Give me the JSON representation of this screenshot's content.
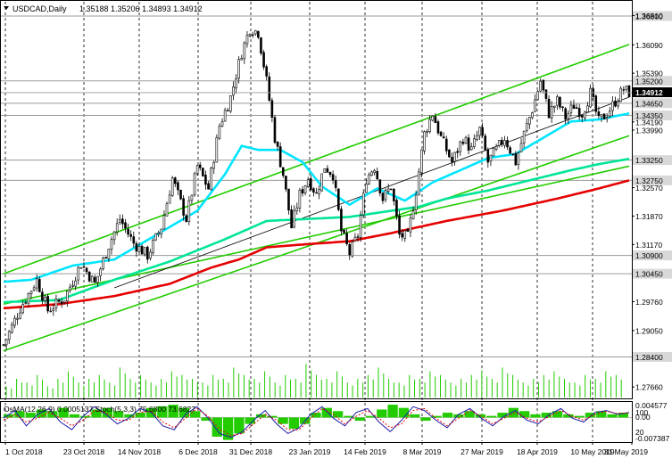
{
  "chart_data": {
    "type": "candlestick",
    "symbol_timeframe": "USDCAD,Daily",
    "ohlc_header": "1.35188 1.35206 1.34893 1.34912",
    "last_price_label": "1.34912",
    "x_ticks": [
      "1 Oct 2018",
      "23 Oct 2018",
      "14 Nov 2018",
      "6 Dec 2018",
      "31 Dec 2018",
      "23 Jan 2019",
      "14 Feb 2019",
      "8 Mar 2019",
      "27 Mar 2019",
      "18 Apr 2019",
      "10 May 2019",
      "31 May 2019"
    ],
    "y_ticks": [
      "1.36810",
      "1.36090",
      "1.35390",
      "1.34190",
      "1.33990",
      "1.32570",
      "1.31870",
      "1.31170",
      "1.29760",
      "1.29050",
      "1.27660"
    ],
    "level_labels": [
      "1.36800",
      "1.35200",
      "1.34650",
      "1.34350",
      "1.33250",
      "1.32750",
      "1.30900",
      "1.30450",
      "1.28400"
    ],
    "ylim": [
      1.274,
      1.3715
    ],
    "key_levels": [
      1.368,
      1.352,
      1.3465,
      1.3435,
      1.3325,
      1.3275,
      1.309,
      1.3045,
      1.284
    ],
    "price_path": [
      [
        0,
        1.287
      ],
      [
        6,
        1.296
      ],
      [
        12,
        1.303
      ],
      [
        16,
        1.2955
      ],
      [
        22,
        1.2985
      ],
      [
        28,
        1.307
      ],
      [
        33,
        1.302
      ],
      [
        38,
        1.3115
      ],
      [
        42,
        1.318
      ],
      [
        47,
        1.312
      ],
      [
        52,
        1.309
      ],
      [
        57,
        1.316
      ],
      [
        61,
        1.328
      ],
      [
        66,
        1.318
      ],
      [
        70,
        1.331
      ],
      [
        74,
        1.3255
      ],
      [
        78,
        1.341
      ],
      [
        82,
        1.348
      ],
      [
        86,
        1.359
      ],
      [
        89,
        1.365
      ],
      [
        92,
        1.364
      ],
      [
        95,
        1.352
      ],
      [
        98,
        1.338
      ],
      [
        101,
        1.329
      ],
      [
        104,
        1.316
      ],
      [
        107,
        1.324
      ],
      [
        110,
        1.328
      ],
      [
        113,
        1.324
      ],
      [
        116,
        1.331
      ],
      [
        119,
        1.329
      ],
      [
        122,
        1.315
      ],
      [
        125,
        1.3095
      ],
      [
        128,
        1.314
      ],
      [
        131,
        1.328
      ],
      [
        134,
        1.331
      ],
      [
        137,
        1.323
      ],
      [
        140,
        1.326
      ],
      [
        143,
        1.314
      ],
      [
        146,
        1.3135
      ],
      [
        149,
        1.325
      ],
      [
        152,
        1.339
      ],
      [
        155,
        1.344
      ],
      [
        158,
        1.338
      ],
      [
        162,
        1.332
      ],
      [
        166,
        1.338
      ],
      [
        169,
        1.335
      ],
      [
        172,
        1.34
      ],
      [
        175,
        1.332
      ],
      [
        178,
        1.335
      ],
      [
        181,
        1.338
      ],
      [
        185,
        1.332
      ],
      [
        188,
        1.339
      ],
      [
        191,
        1.345
      ],
      [
        194,
        1.352
      ],
      [
        197,
        1.344
      ],
      [
        200,
        1.347
      ],
      [
        203,
        1.343
      ],
      [
        206,
        1.346
      ],
      [
        209,
        1.344
      ],
      [
        212,
        1.349
      ],
      [
        215,
        1.342
      ],
      [
        218,
        1.344
      ],
      [
        221,
        1.347
      ],
      [
        224,
        1.35
      ],
      [
        226,
        1.3491
      ]
    ],
    "ma_series": [
      {
        "color": "#00e5ff",
        "points": [
          [
            0,
            1.3025
          ],
          [
            10,
            1.303
          ],
          [
            25,
            1.3065
          ],
          [
            40,
            1.308
          ],
          [
            55,
            1.314
          ],
          [
            70,
            1.32
          ],
          [
            80,
            1.329
          ],
          [
            86,
            1.336
          ],
          [
            92,
            1.335
          ],
          [
            100,
            1.335
          ],
          [
            108,
            1.332
          ],
          [
            115,
            1.326
          ],
          [
            125,
            1.3215
          ],
          [
            135,
            1.3255
          ],
          [
            145,
            1.3225
          ],
          [
            155,
            1.327
          ],
          [
            165,
            1.33
          ],
          [
            175,
            1.333
          ],
          [
            185,
            1.334
          ],
          [
            195,
            1.338
          ],
          [
            205,
            1.342
          ],
          [
            215,
            1.3425
          ],
          [
            226,
            1.344
          ]
        ]
      },
      {
        "color": "#00e596",
        "points": [
          [
            0,
            1.2975
          ],
          [
            20,
            1.298
          ],
          [
            40,
            1.303
          ],
          [
            60,
            1.3075
          ],
          [
            80,
            1.313
          ],
          [
            95,
            1.3175
          ],
          [
            110,
            1.318
          ],
          [
            125,
            1.3185
          ],
          [
            140,
            1.32
          ],
          [
            150,
            1.321
          ],
          [
            160,
            1.323
          ],
          [
            175,
            1.325
          ],
          [
            190,
            1.3275
          ],
          [
            205,
            1.33
          ],
          [
            215,
            1.3315
          ],
          [
            226,
            1.3328
          ]
        ]
      },
      {
        "color": "#e60000",
        "points": [
          [
            0,
            1.296
          ],
          [
            20,
            1.297
          ],
          [
            40,
            1.299
          ],
          [
            60,
            1.302
          ],
          [
            75,
            1.306
          ],
          [
            85,
            1.308
          ],
          [
            95,
            1.311
          ],
          [
            110,
            1.3118
          ],
          [
            125,
            1.3125
          ],
          [
            140,
            1.3145
          ],
          [
            160,
            1.3175
          ],
          [
            180,
            1.32
          ],
          [
            200,
            1.323
          ],
          [
            215,
            1.3255
          ],
          [
            226,
            1.3275
          ]
        ]
      }
    ],
    "channel_lines": [
      {
        "color": "#22cc00",
        "from": [
          0,
          1.3045
        ],
        "to": [
          226,
          1.361
        ]
      },
      {
        "color": "#22cc00",
        "from": [
          0,
          1.2855
        ],
        "to": [
          226,
          1.3385
        ]
      },
      {
        "color": "#22cc00",
        "from": [
          0,
          1.297
        ],
        "to": [
          226,
          1.331
        ]
      },
      {
        "color": "#000000",
        "from": [
          40,
          1.301
        ],
        "to": [
          226,
          1.348
        ]
      }
    ],
    "volume_bars": [
      3,
      5,
      4,
      6,
      3,
      5,
      7,
      4,
      5,
      6,
      4,
      8,
      5,
      6,
      4,
      5,
      7,
      6,
      5,
      4,
      6,
      5,
      8,
      6,
      5,
      7,
      4,
      6,
      5,
      9,
      6,
      5,
      7,
      4,
      5,
      6,
      8,
      5,
      4,
      6,
      5,
      7,
      6,
      4,
      5,
      6,
      7,
      5,
      8,
      6,
      4,
      5,
      6,
      7,
      5,
      4,
      6,
      5,
      7,
      6
    ],
    "oscillator": {
      "label": "OsMA(12,26,9) 0.0005137  Stoch(5,3,3) 75.6800 73.6827",
      "scale_labels": [
        "0.004577",
        "100",
        "0.00",
        "20",
        "-0.007387"
      ],
      "osma": [
        0.001,
        0.002,
        0.0015,
        0.0025,
        0.002,
        0.003,
        0.001,
        0.0005,
        0.0025,
        0.003,
        0.002,
        0.001,
        0.0015,
        0.003,
        0.0035,
        0.004,
        0.003,
        0.002,
        -0.001,
        -0.006,
        -0.007,
        -0.005,
        -0.002,
        0.001,
        0.0005,
        -0.002,
        -0.0035,
        -0.002,
        0.0015,
        0.003,
        0.002,
        0.0005,
        -0.001,
        0.0005,
        0.0025,
        0.004,
        0.003,
        0.001,
        -0.001,
        0.0005,
        0.0015,
        0.001,
        0.002,
        0.001,
        0.0005,
        0.0015,
        0.003,
        0.002,
        0.001,
        0.0015,
        0.002,
        0.001,
        0.0005,
        0.0015,
        0.002,
        0.001,
        0.0015
      ],
      "stoch_main": [
        60,
        80,
        40,
        70,
        85,
        50,
        30,
        65,
        90,
        70,
        45,
        60,
        85,
        75,
        40,
        30,
        70,
        90,
        60,
        20,
        10,
        25,
        55,
        80,
        45,
        20,
        35,
        70,
        90,
        60,
        40,
        75,
        85,
        50,
        25,
        55,
        90,
        80,
        55,
        35,
        70,
        85,
        60,
        40,
        65,
        80,
        55,
        45,
        70,
        85,
        60,
        50,
        75,
        80,
        70,
        75
      ],
      "stoch_signal": [
        55,
        70,
        50,
        60,
        75,
        60,
        40,
        55,
        80,
        75,
        55,
        55,
        75,
        78,
        50,
        35,
        60,
        85,
        65,
        30,
        15,
        20,
        45,
        70,
        55,
        30,
        30,
        60,
        85,
        70,
        45,
        65,
        80,
        60,
        35,
        45,
        80,
        85,
        60,
        40,
        60,
        80,
        65,
        45,
        60,
        75,
        60,
        50,
        65,
        80,
        65,
        55,
        70,
        78,
        72,
        74
      ],
      "osma_range": [
        -0.007387,
        0.004577
      ]
    }
  }
}
